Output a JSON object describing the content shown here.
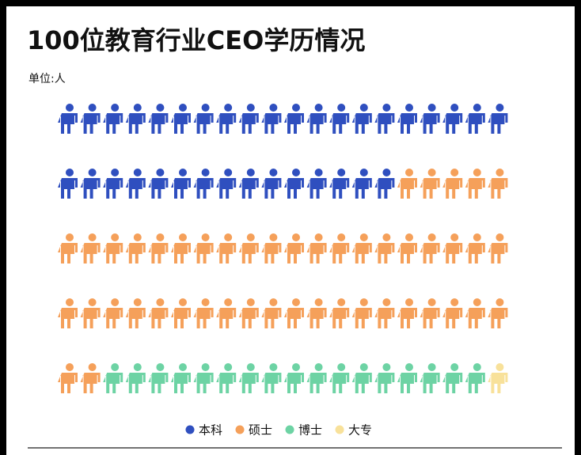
{
  "chart_data": {
    "type": "pictogram",
    "title": "100位教育行业CEO学历情况",
    "subtitle": "单位:人",
    "categories": [
      "本科",
      "硕士",
      "博士",
      "大专"
    ],
    "values": [
      35,
      47,
      17,
      1
    ],
    "colors": [
      "#2f4fbf",
      "#f5a05a",
      "#6dd3a4",
      "#f8e19a"
    ],
    "per_row": 20
  }
}
